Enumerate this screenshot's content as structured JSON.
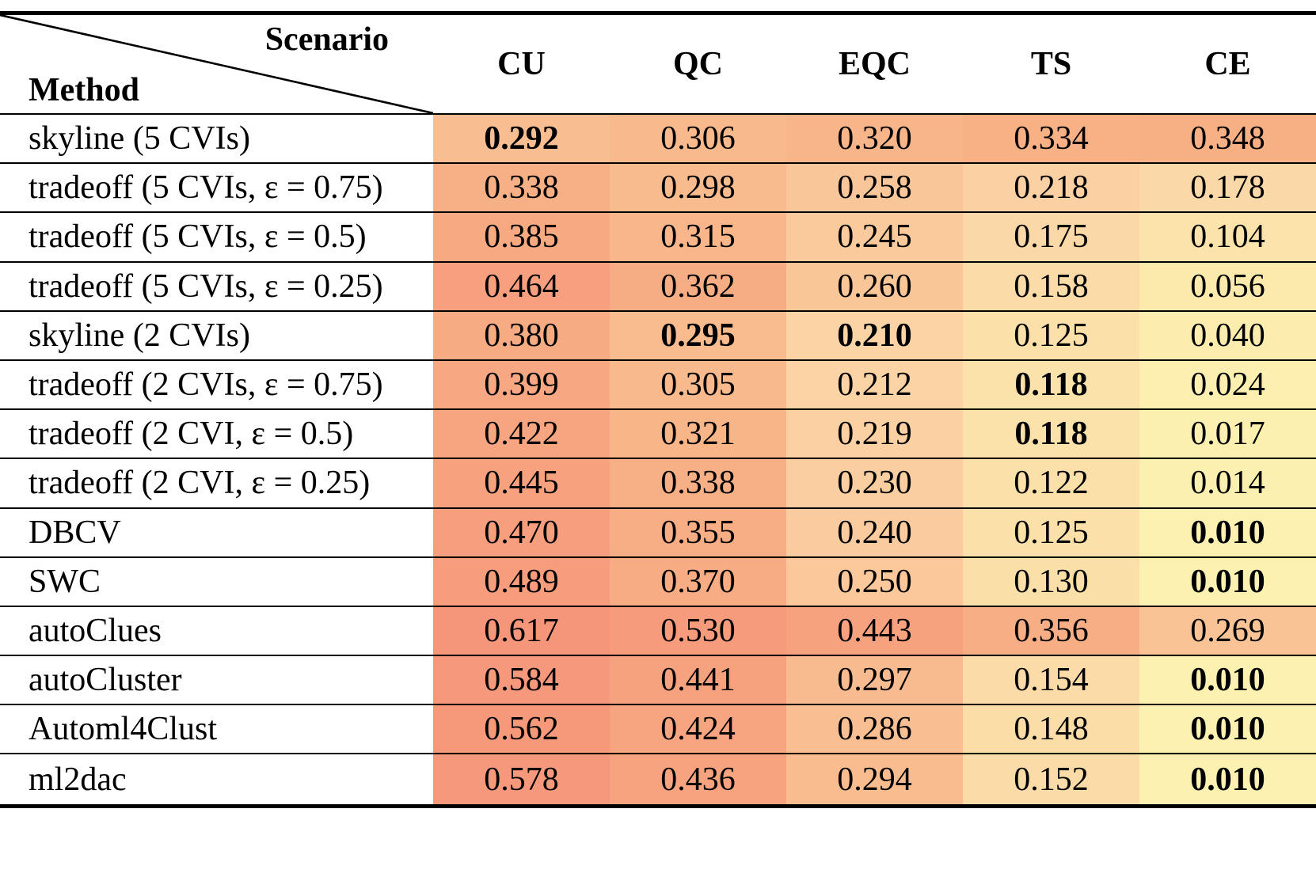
{
  "table": {
    "corner": {
      "scenario_label": "Scenario",
      "method_label": "Method"
    },
    "columns": [
      "CU",
      "QC",
      "EQC",
      "TS",
      "CE"
    ],
    "rows": [
      {
        "method": "skyline (5 CVIs)",
        "values": [
          "0.292",
          "0.306",
          "0.320",
          "0.334",
          "0.348"
        ],
        "bold": [
          true,
          false,
          false,
          false,
          false
        ]
      },
      {
        "method": "tradeoff (5 CVIs, ε = 0.75)",
        "values": [
          "0.338",
          "0.298",
          "0.258",
          "0.218",
          "0.178"
        ],
        "bold": [
          false,
          false,
          false,
          false,
          false
        ]
      },
      {
        "method": "tradeoff (5 CVIs, ε = 0.5)",
        "values": [
          "0.385",
          "0.315",
          "0.245",
          "0.175",
          "0.104"
        ],
        "bold": [
          false,
          false,
          false,
          false,
          false
        ]
      },
      {
        "method": "tradeoff (5 CVIs, ε = 0.25)",
        "values": [
          "0.464",
          "0.362",
          "0.260",
          "0.158",
          "0.056"
        ],
        "bold": [
          false,
          false,
          false,
          false,
          false
        ]
      },
      {
        "method": "skyline (2 CVIs)",
        "values": [
          "0.380",
          "0.295",
          "0.210",
          "0.125",
          "0.040"
        ],
        "bold": [
          false,
          true,
          true,
          false,
          false
        ]
      },
      {
        "method": "tradeoff (2 CVIs, ε = 0.75)",
        "values": [
          "0.399",
          "0.305",
          "0.212",
          "0.118",
          "0.024"
        ],
        "bold": [
          false,
          false,
          false,
          true,
          false
        ]
      },
      {
        "method": "tradeoff (2 CVI, ε = 0.5)",
        "values": [
          "0.422",
          "0.321",
          "0.219",
          "0.118",
          "0.017"
        ],
        "bold": [
          false,
          false,
          false,
          true,
          false
        ]
      },
      {
        "method": "tradeoff (2 CVI, ε = 0.25)",
        "values": [
          "0.445",
          "0.338",
          "0.230",
          "0.122",
          "0.014"
        ],
        "bold": [
          false,
          false,
          false,
          false,
          false
        ]
      },
      {
        "method": "DBCV",
        "values": [
          "0.470",
          "0.355",
          "0.240",
          "0.125",
          "0.010"
        ],
        "bold": [
          false,
          false,
          false,
          false,
          true
        ]
      },
      {
        "method": "SWC",
        "values": [
          "0.489",
          "0.370",
          "0.250",
          "0.130",
          "0.010"
        ],
        "bold": [
          false,
          false,
          false,
          false,
          true
        ]
      },
      {
        "method": "autoClues",
        "values": [
          "0.617",
          "0.530",
          "0.443",
          "0.356",
          "0.269"
        ],
        "bold": [
          false,
          false,
          false,
          false,
          false
        ]
      },
      {
        "method": "autoCluster",
        "values": [
          "0.584",
          "0.441",
          "0.297",
          "0.154",
          "0.010"
        ],
        "bold": [
          false,
          false,
          false,
          false,
          true
        ]
      },
      {
        "method": "Automl4Clust",
        "values": [
          "0.562",
          "0.424",
          "0.286",
          "0.148",
          "0.010"
        ],
        "bold": [
          false,
          false,
          false,
          false,
          true
        ]
      },
      {
        "method": "ml2dac",
        "values": [
          "0.578",
          "0.436",
          "0.294",
          "0.152",
          "0.010"
        ],
        "bold": [
          false,
          false,
          false,
          false,
          true
        ]
      }
    ],
    "heatmap": {
      "anchors": [
        {
          "value": 0.01,
          "color": "#FCF1B0"
        },
        {
          "value": 0.212,
          "color": "#FBD3A5"
        },
        {
          "value": 0.334,
          "color": "#F7B185"
        },
        {
          "value": 0.47,
          "color": "#F79E7E"
        },
        {
          "value": 0.617,
          "color": "#F5967A"
        }
      ]
    }
  }
}
